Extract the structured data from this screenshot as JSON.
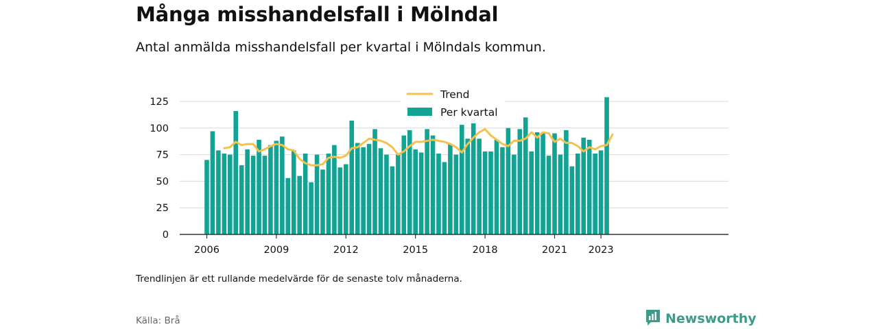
{
  "header": {
    "title": "Många misshandelsfall i Mölndal",
    "subtitle": "Antal anmälda misshandelsfall per kvartal i Mölndals kommun."
  },
  "footer": {
    "note": "Trendlinjen är ett rullande medelvärde för de senaste tolv månaderna.",
    "source": "Källa: Brå",
    "brand": "Newsworthy"
  },
  "colors": {
    "bar": "#12a394",
    "trend": "#f6c04d",
    "grid": "#d9d9d9",
    "axis": "#333333",
    "brand": "#3e9b8a"
  },
  "chart_data": {
    "type": "bar",
    "title": "Många misshandelsfall i Mölndal",
    "subtitle": "Antal anmälda misshandelsfall per kvartal i Mölndals kommun.",
    "xlabel": "",
    "ylabel": "",
    "ylim": [
      0,
      130
    ],
    "yticks": [
      0,
      25,
      50,
      75,
      100,
      125
    ],
    "grid": true,
    "legend_placement": "top-center",
    "x_start": "2006-Q1",
    "xticks": [
      {
        "label": "2006",
        "quarter_index": 0
      },
      {
        "label": "2009",
        "quarter_index": 12
      },
      {
        "label": "2012",
        "quarter_index": 24
      },
      {
        "label": "2015",
        "quarter_index": 36
      },
      {
        "label": "2018",
        "quarter_index": 48
      },
      {
        "label": "2021",
        "quarter_index": 60
      },
      {
        "label": "2023",
        "quarter_index": 68
      }
    ],
    "series": [
      {
        "name": "Per kvartal",
        "type": "bar",
        "values": [
          70,
          97,
          79,
          76,
          75,
          116,
          65,
          80,
          74,
          89,
          74,
          84,
          88,
          92,
          53,
          79,
          55,
          76,
          49,
          75,
          61,
          76,
          84,
          63,
          66,
          107,
          86,
          82,
          85,
          99,
          81,
          75,
          64,
          75,
          93,
          98,
          80,
          77,
          99,
          93,
          76,
          68,
          85,
          75,
          103,
          90,
          109,
          90,
          78,
          78,
          89,
          82,
          100,
          75,
          99,
          110,
          78,
          96,
          95,
          74,
          95,
          75,
          98,
          64,
          76,
          91,
          89,
          76,
          79,
          129
        ]
      },
      {
        "name": "Trend",
        "type": "line",
        "start_index": 3,
        "values": [
          81,
          82,
          87,
          84,
          85,
          85,
          78,
          80,
          83,
          85,
          84,
          80,
          79,
          71,
          67,
          65,
          65,
          66,
          72,
          73,
          72,
          74,
          81,
          82,
          86,
          90,
          89,
          88,
          86,
          82,
          75,
          78,
          83,
          87,
          87,
          88,
          89,
          88,
          87,
          85,
          82,
          77,
          85,
          91,
          96,
          99,
          93,
          89,
          85,
          83,
          88,
          88,
          90,
          96,
          91,
          96,
          95,
          87,
          90,
          86,
          86,
          83,
          78,
          82,
          80,
          83,
          84,
          94
        ]
      }
    ]
  }
}
